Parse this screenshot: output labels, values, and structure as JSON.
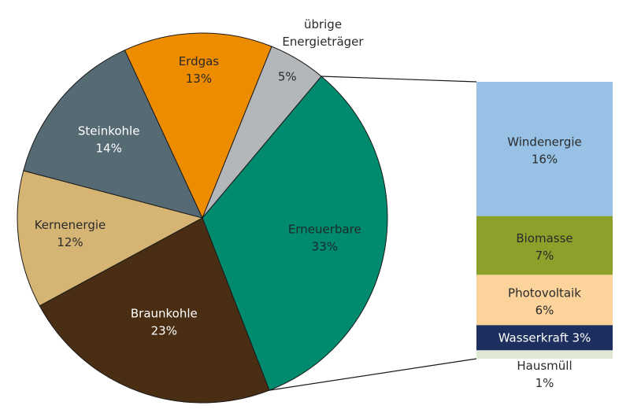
{
  "chart_data": [
    {
      "type": "pie",
      "slices": [
        {
          "name": "Erneuerbare",
          "value": 33,
          "label": "33%",
          "color": "#008a6e",
          "text_color": "#1a2a2a"
        },
        {
          "name": "Braunkohle",
          "value": 23,
          "label": "23%",
          "color": "#4a2e14",
          "text_color": "#ffffff"
        },
        {
          "name": "Kernenergie",
          "value": 12,
          "label": "12%",
          "color": "#d6b574",
          "text_color": "#2a2a2a"
        },
        {
          "name": "Steinkohle",
          "value": 14,
          "label": "14%",
          "color": "#566a74",
          "text_color": "#ffffff"
        },
        {
          "name": "Erdgas",
          "value": 13,
          "label": "13%",
          "color": "#ee8c00",
          "text_color": "#2a2a2a"
        },
        {
          "name": "übrige Energieträger",
          "value": 5,
          "label": "5%",
          "color": "#b3b7ba",
          "text_color": "#2a2a2a"
        }
      ]
    },
    {
      "type": "bar",
      "stacked": true,
      "segments": [
        {
          "name": "Windenergie",
          "value": 16,
          "label": "16%",
          "color": "#97c2e6",
          "text_color": "#2a2a2a"
        },
        {
          "name": "Biomasse",
          "value": 7,
          "label": "7%",
          "color": "#8ca12a",
          "text_color": "#2a2a2a"
        },
        {
          "name": "Photovoltaik",
          "value": 6,
          "label": "6%",
          "color": "#fbd39b",
          "text_color": "#2a2a2a"
        },
        {
          "name": "Wasserkraft",
          "value": 3,
          "label": "3%",
          "color": "#1c2f5e",
          "text_color": "#ffffff"
        },
        {
          "name": "Hausmüll",
          "value": 1,
          "label": "1%",
          "color": "#dfe8d2",
          "text_color": "#2a2a2a"
        }
      ]
    }
  ]
}
